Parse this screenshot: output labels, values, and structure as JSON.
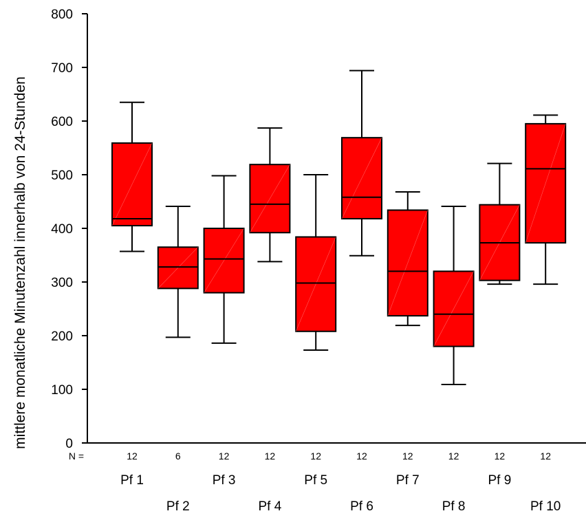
{
  "chart_data": {
    "type": "boxplot",
    "ylabel": "mittlere monatliche Minutenzahl innerhalb von 24-Stunden",
    "xlabel": "",
    "ylim": [
      0,
      800
    ],
    "yticks": [
      0,
      100,
      200,
      300,
      400,
      500,
      600,
      700,
      800
    ],
    "n_prefix": "N =",
    "box_color": "#ff0000",
    "categories": [
      "Pf 1",
      "Pf 2",
      "Pf 3",
      "Pf 4",
      "Pf 5",
      "Pf 6",
      "Pf 7",
      "Pf 8",
      "Pf 9",
      "Pf 10"
    ],
    "n": [
      "12",
      "6",
      "12",
      "12",
      "12",
      "12",
      "12",
      "12",
      "12",
      "12"
    ],
    "boxes": [
      {
        "min": 357,
        "q1": 405,
        "median": 418,
        "q3": 559,
        "max": 635
      },
      {
        "min": 197,
        "q1": 288,
        "median": 328,
        "q3": 365,
        "max": 441
      },
      {
        "min": 186,
        "q1": 280,
        "median": 343,
        "q3": 400,
        "max": 498
      },
      {
        "min": 338,
        "q1": 392,
        "median": 445,
        "q3": 519,
        "max": 587
      },
      {
        "min": 173,
        "q1": 208,
        "median": 298,
        "q3": 384,
        "max": 500
      },
      {
        "min": 349,
        "q1": 418,
        "median": 458,
        "q3": 569,
        "max": 694
      },
      {
        "min": 219,
        "q1": 237,
        "median": 320,
        "q3": 434,
        "max": 468
      },
      {
        "min": 109,
        "q1": 180,
        "median": 240,
        "q3": 320,
        "max": 441
      },
      {
        "min": 296,
        "q1": 303,
        "median": 373,
        "q3": 444,
        "max": 521
      },
      {
        "min": 296,
        "q1": 373,
        "median": 511,
        "q3": 595,
        "max": 611
      }
    ]
  }
}
